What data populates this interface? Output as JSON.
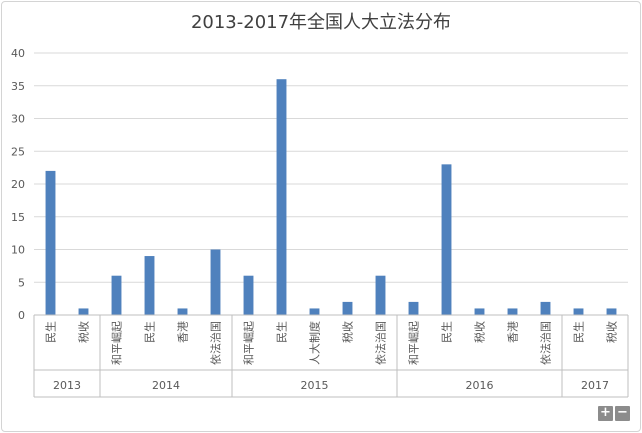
{
  "chart_data": {
    "type": "bar",
    "title": "2013-2017年全国人大立法分布",
    "ylim": [
      0,
      40
    ],
    "yticks": [
      "0",
      "5",
      "10",
      "15",
      "20",
      "25",
      "30",
      "35",
      "40"
    ],
    "grid": true,
    "bar_color": "#4f81bd",
    "groups": [
      {
        "year": "2013",
        "categories": [
          "民生",
          "税收"
        ],
        "values": [
          22,
          1
        ]
      },
      {
        "year": "2014",
        "categories": [
          "和平崛起",
          "民生",
          "香港",
          "依法治国"
        ],
        "values": [
          6,
          9,
          1,
          10
        ]
      },
      {
        "year": "2015",
        "categories": [
          "和平崛起",
          "民生",
          "人大制度",
          "税收",
          "依法治国"
        ],
        "values": [
          6,
          36,
          1,
          2,
          6
        ]
      },
      {
        "year": "2016",
        "categories": [
          "和平崛起",
          "民生",
          "税收",
          "香港",
          "依法治国"
        ],
        "values": [
          2,
          23,
          1,
          1,
          2
        ]
      },
      {
        "year": "2017",
        "categories": [
          "民生",
          "税收"
        ],
        "values": [
          1,
          1
        ]
      }
    ]
  },
  "zoom": {
    "plus": "+",
    "minus": "−"
  }
}
